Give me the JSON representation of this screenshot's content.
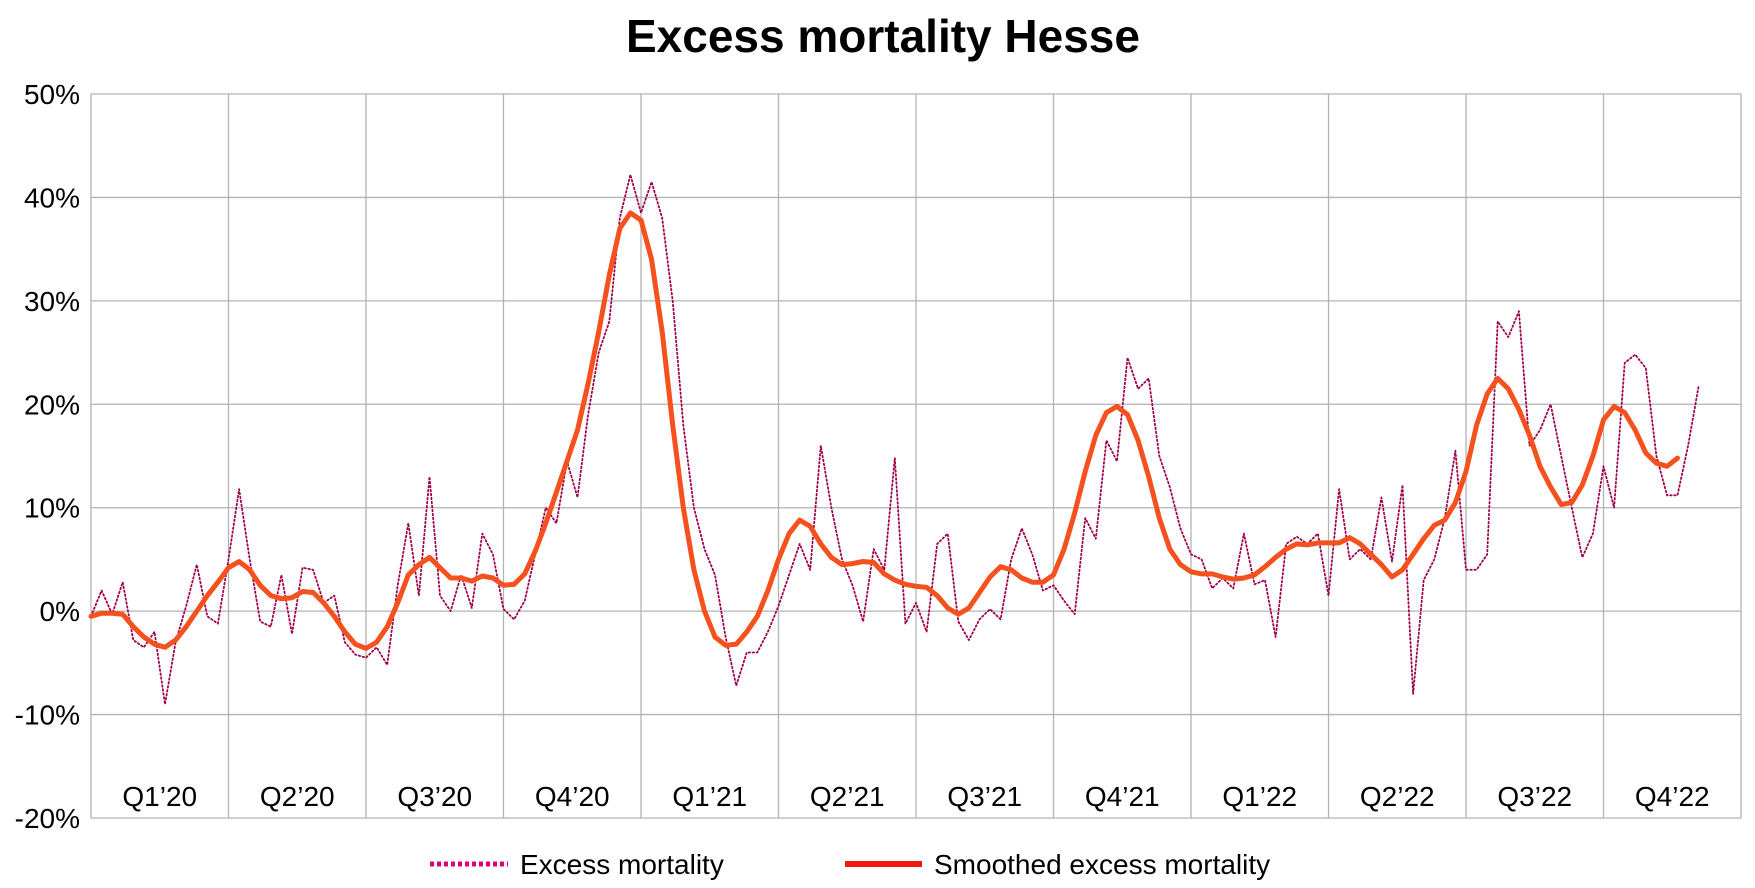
{
  "chart_data": {
    "type": "line",
    "title": "Excess mortality Hesse",
    "xlabel": "",
    "ylabel": "",
    "ylim": [
      -20,
      50
    ],
    "y_tick_labels": [
      "50%",
      "40%",
      "30%",
      "20%",
      "10%",
      "0%",
      "-10%",
      "-20%"
    ],
    "y_tick_values": [
      50,
      40,
      30,
      20,
      10,
      0,
      -10,
      -20
    ],
    "x_tick_labels": [
      "Q1’20",
      "Q2’20",
      "Q3’20",
      "Q4’20",
      "Q1’21",
      "Q2’21",
      "Q3’21",
      "Q4’21",
      "Q1’22",
      "Q2’22",
      "Q3’22",
      "Q4’22"
    ],
    "x_unit": "week",
    "xlim": [
      0,
      156
    ],
    "grid": true,
    "legend_position": "bottom",
    "series": [
      {
        "name": "Excess mortality",
        "style": "dotted",
        "color": "#a0004b",
        "legend_color": "#e0007a",
        "points": [
          [
            0,
            -0.5
          ],
          [
            1,
            2
          ],
          [
            2,
            -0.3
          ],
          [
            3,
            2.8
          ],
          [
            4,
            -2.8
          ],
          [
            5,
            -3.5
          ],
          [
            6,
            -2
          ],
          [
            7,
            -9
          ],
          [
            8,
            -3
          ],
          [
            9,
            0.5
          ],
          [
            10,
            4.5
          ],
          [
            11,
            -0.5
          ],
          [
            12,
            -1.2
          ],
          [
            13,
            5
          ],
          [
            14,
            11.8
          ],
          [
            15,
            5
          ],
          [
            16,
            -1
          ],
          [
            17,
            -1.5
          ],
          [
            18,
            3.5
          ],
          [
            19,
            -2.2
          ],
          [
            20,
            4.2
          ],
          [
            21,
            4
          ],
          [
            22,
            0.8
          ],
          [
            23,
            1.5
          ],
          [
            24,
            -3
          ],
          [
            25,
            -4.2
          ],
          [
            26,
            -4.5
          ],
          [
            27,
            -3.5
          ],
          [
            28,
            -5.2
          ],
          [
            29,
            2.5
          ],
          [
            30,
            8.5
          ],
          [
            31,
            1.5
          ],
          [
            32,
            13
          ],
          [
            33,
            1.5
          ],
          [
            34,
            0
          ],
          [
            35,
            3.5
          ],
          [
            36,
            0.3
          ],
          [
            37,
            7.5
          ],
          [
            38,
            5.5
          ],
          [
            39,
            0.2
          ],
          [
            40,
            -0.8
          ],
          [
            41,
            1
          ],
          [
            42,
            5.5
          ],
          [
            43,
            10
          ],
          [
            44,
            8.5
          ],
          [
            45,
            14.5
          ],
          [
            46,
            11
          ],
          [
            47,
            19
          ],
          [
            48,
            25
          ],
          [
            49,
            28
          ],
          [
            50,
            38
          ],
          [
            51,
            42.2
          ],
          [
            52,
            38.5
          ],
          [
            53,
            41.5
          ],
          [
            54,
            38
          ],
          [
            55,
            30
          ],
          [
            56,
            18
          ],
          [
            57,
            10
          ],
          [
            58,
            6
          ],
          [
            59,
            3.5
          ],
          [
            60,
            -2.5
          ],
          [
            61,
            -7.2
          ],
          [
            62,
            -4
          ],
          [
            63,
            -4
          ],
          [
            64,
            -2
          ],
          [
            65,
            0.5
          ],
          [
            66,
            3.5
          ],
          [
            67,
            6.5
          ],
          [
            68,
            4
          ],
          [
            69,
            16
          ],
          [
            70,
            10
          ],
          [
            71,
            5
          ],
          [
            72,
            2.5
          ],
          [
            73,
            -1
          ],
          [
            74,
            6
          ],
          [
            75,
            4
          ],
          [
            76,
            14.8
          ],
          [
            77,
            -1.2
          ],
          [
            78,
            0.8
          ],
          [
            79,
            -2
          ],
          [
            80,
            6.5
          ],
          [
            81,
            7.5
          ],
          [
            82,
            -1
          ],
          [
            83,
            -2.8
          ],
          [
            84,
            -0.8
          ],
          [
            85,
            0.2
          ],
          [
            86,
            -0.8
          ],
          [
            87,
            5
          ],
          [
            88,
            8
          ],
          [
            89,
            5.5
          ],
          [
            90,
            2
          ],
          [
            91,
            2.5
          ],
          [
            92,
            1
          ],
          [
            93,
            -0.3
          ],
          [
            94,
            9
          ],
          [
            95,
            7
          ],
          [
            96,
            16.5
          ],
          [
            97,
            14.5
          ],
          [
            98,
            24.5
          ],
          [
            99,
            21.5
          ],
          [
            100,
            22.5
          ],
          [
            101,
            15
          ],
          [
            102,
            12
          ],
          [
            103,
            8
          ],
          [
            104,
            5.5
          ],
          [
            105,
            5
          ],
          [
            106,
            2.2
          ],
          [
            107,
            3.2
          ],
          [
            108,
            2.2
          ],
          [
            109,
            7.5
          ],
          [
            110,
            2.6
          ],
          [
            111,
            3
          ],
          [
            112,
            -2.5
          ],
          [
            113,
            6.5
          ],
          [
            114,
            7.2
          ],
          [
            115,
            6.5
          ],
          [
            116,
            7.5
          ],
          [
            117,
            1.5
          ],
          [
            118,
            11.8
          ],
          [
            119,
            5
          ],
          [
            120,
            6
          ],
          [
            121,
            5
          ],
          [
            122,
            11
          ],
          [
            123,
            4.8
          ],
          [
            124,
            12.2
          ],
          [
            125,
            -8
          ],
          [
            126,
            3
          ],
          [
            127,
            5
          ],
          [
            128,
            9
          ],
          [
            129,
            15.5
          ],
          [
            130,
            4
          ],
          [
            131,
            4
          ],
          [
            132,
            5.5
          ],
          [
            133,
            28
          ],
          [
            134,
            26.5
          ],
          [
            135,
            29
          ],
          [
            136,
            16
          ],
          [
            137,
            17.5
          ],
          [
            138,
            20
          ],
          [
            139,
            15
          ],
          [
            140,
            10
          ],
          [
            141,
            5.2
          ],
          [
            142,
            7.5
          ],
          [
            143,
            14
          ],
          [
            144,
            10
          ],
          [
            145,
            24
          ],
          [
            146,
            24.8
          ],
          [
            147,
            23.5
          ],
          [
            148,
            15
          ],
          [
            149,
            11.2
          ],
          [
            150,
            11.2
          ],
          [
            151,
            16
          ],
          [
            152,
            21.8
          ]
        ]
      },
      {
        "name": "Smoothed excess mortality",
        "style": "solid",
        "color": "#f4511e",
        "legend_color": "#f21b12",
        "points": [
          [
            0,
            -0.5
          ],
          [
            1,
            -0.2
          ],
          [
            2,
            -0.2
          ],
          [
            3,
            -0.3
          ],
          [
            4,
            -1.5
          ],
          [
            5,
            -2.5
          ],
          [
            6,
            -3.2
          ],
          [
            7,
            -3.5
          ],
          [
            8,
            -2.8
          ],
          [
            9,
            -1.5
          ],
          [
            10,
            0
          ],
          [
            11,
            1.5
          ],
          [
            12,
            2.8
          ],
          [
            13,
            4.2
          ],
          [
            14,
            4.8
          ],
          [
            15,
            4
          ],
          [
            16,
            2.5
          ],
          [
            17,
            1.5
          ],
          [
            18,
            1.2
          ],
          [
            19,
            1.3
          ],
          [
            20,
            1.9
          ],
          [
            21,
            1.8
          ],
          [
            22,
            0.8
          ],
          [
            23,
            -0.5
          ],
          [
            24,
            -2
          ],
          [
            25,
            -3.2
          ],
          [
            26,
            -3.6
          ],
          [
            27,
            -3
          ],
          [
            28,
            -1.5
          ],
          [
            29,
            0.8
          ],
          [
            30,
            3.5
          ],
          [
            31,
            4.5
          ],
          [
            32,
            5.2
          ],
          [
            33,
            4.2
          ],
          [
            34,
            3.2
          ],
          [
            35,
            3.2
          ],
          [
            36,
            2.9
          ],
          [
            37,
            3.4
          ],
          [
            38,
            3.2
          ],
          [
            39,
            2.5
          ],
          [
            40,
            2.6
          ],
          [
            41,
            3.6
          ],
          [
            42,
            5.8
          ],
          [
            43,
            8.5
          ],
          [
            44,
            11.5
          ],
          [
            45,
            14.5
          ],
          [
            46,
            17.5
          ],
          [
            47,
            22
          ],
          [
            48,
            27
          ],
          [
            49,
            32.5
          ],
          [
            50,
            37
          ],
          [
            51,
            38.5
          ],
          [
            52,
            37.8
          ],
          [
            53,
            34
          ],
          [
            54,
            27
          ],
          [
            55,
            18
          ],
          [
            56,
            10
          ],
          [
            57,
            4
          ],
          [
            58,
            0
          ],
          [
            59,
            -2.5
          ],
          [
            60,
            -3.3
          ],
          [
            61,
            -3.2
          ],
          [
            62,
            -2
          ],
          [
            63,
            -0.5
          ],
          [
            64,
            2
          ],
          [
            65,
            5
          ],
          [
            66,
            7.5
          ],
          [
            67,
            8.8
          ],
          [
            68,
            8.2
          ],
          [
            69,
            6.5
          ],
          [
            70,
            5.2
          ],
          [
            71,
            4.5
          ],
          [
            72,
            4.6
          ],
          [
            73,
            4.8
          ],
          [
            74,
            4.7
          ],
          [
            75,
            3.6
          ],
          [
            76,
            3
          ],
          [
            77,
            2.6
          ],
          [
            78,
            2.4
          ],
          [
            79,
            2.3
          ],
          [
            80,
            1.5
          ],
          [
            81,
            0.3
          ],
          [
            82,
            -0.3
          ],
          [
            83,
            0.3
          ],
          [
            84,
            1.8
          ],
          [
            85,
            3.3
          ],
          [
            86,
            4.3
          ],
          [
            87,
            4
          ],
          [
            88,
            3.2
          ],
          [
            89,
            2.8
          ],
          [
            90,
            2.8
          ],
          [
            91,
            3.5
          ],
          [
            92,
            6
          ],
          [
            93,
            9.5
          ],
          [
            94,
            13.5
          ],
          [
            95,
            17
          ],
          [
            96,
            19.2
          ],
          [
            97,
            19.8
          ],
          [
            98,
            19
          ],
          [
            99,
            16.5
          ],
          [
            100,
            13
          ],
          [
            101,
            9
          ],
          [
            102,
            6
          ],
          [
            103,
            4.5
          ],
          [
            104,
            3.8
          ],
          [
            105,
            3.6
          ],
          [
            106,
            3.6
          ],
          [
            107,
            3.3
          ],
          [
            108,
            3.1
          ],
          [
            109,
            3.2
          ],
          [
            110,
            3.5
          ],
          [
            111,
            4.3
          ],
          [
            112,
            5.2
          ],
          [
            113,
            6
          ],
          [
            114,
            6.5
          ],
          [
            115,
            6.4
          ],
          [
            116,
            6.6
          ],
          [
            117,
            6.6
          ],
          [
            118,
            6.6
          ],
          [
            119,
            7.1
          ],
          [
            120,
            6.5
          ],
          [
            121,
            5.5
          ],
          [
            122,
            4.5
          ],
          [
            123,
            3.3
          ],
          [
            124,
            4
          ],
          [
            125,
            5.5
          ],
          [
            126,
            7
          ],
          [
            127,
            8.3
          ],
          [
            128,
            8.8
          ],
          [
            129,
            10.5
          ],
          [
            130,
            13.5
          ],
          [
            131,
            18
          ],
          [
            132,
            21
          ],
          [
            133,
            22.5
          ],
          [
            134,
            21.5
          ],
          [
            135,
            19.5
          ],
          [
            136,
            17
          ],
          [
            137,
            14
          ],
          [
            138,
            12
          ],
          [
            139,
            10.3
          ],
          [
            140,
            10.5
          ],
          [
            141,
            12.2
          ],
          [
            142,
            15
          ],
          [
            143,
            18.5
          ],
          [
            144,
            19.8
          ],
          [
            145,
            19.2
          ],
          [
            146,
            17.5
          ],
          [
            147,
            15.3
          ],
          [
            148,
            14.3
          ],
          [
            149,
            14
          ],
          [
            150,
            14.8
          ]
        ]
      }
    ]
  }
}
